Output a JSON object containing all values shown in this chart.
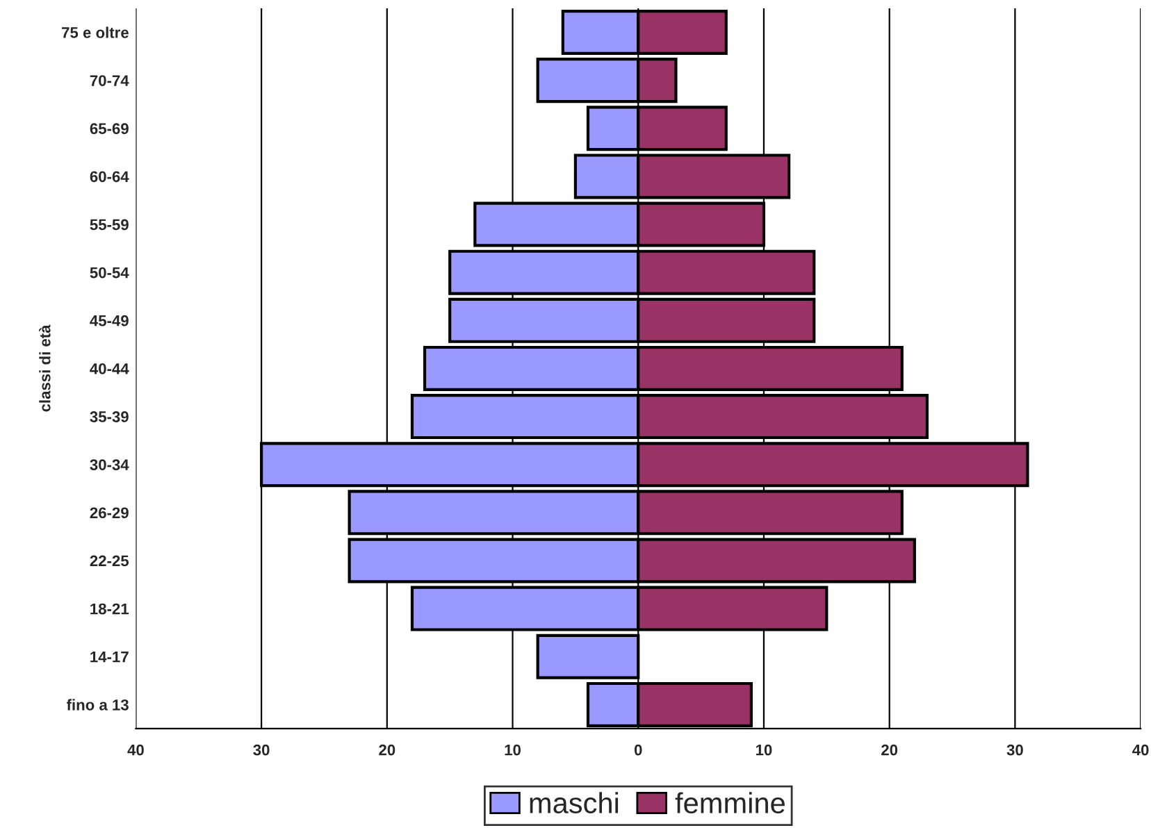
{
  "chart_data": {
    "type": "bar",
    "orientation": "horizontal",
    "ylabel": "classi di età",
    "categories": [
      "75 e oltre",
      "70-74",
      "65-69",
      "60-64",
      "55-59",
      "50-54",
      "45-49",
      "40-44",
      "35-39",
      "30-34",
      "26-29",
      "22-25",
      "18-21",
      "14-17",
      "fino a 13"
    ],
    "series": [
      {
        "name": "maschi",
        "color": "#9999ff",
        "values": [
          -6,
          -8,
          -4,
          -5,
          -13,
          -15,
          -15,
          -17,
          -18,
          -30,
          -23,
          -23,
          -18,
          -8,
          -4
        ]
      },
      {
        "name": "femmine",
        "color": "#993366",
        "values": [
          7,
          3,
          7,
          12,
          10,
          14,
          14,
          21,
          23,
          31,
          21,
          22,
          15,
          null,
          9
        ]
      }
    ],
    "xlim": [
      -40,
      40
    ],
    "xticks": [
      {
        "value": -40,
        "label": "40"
      },
      {
        "value": -30,
        "label": "30"
      },
      {
        "value": -20,
        "label": "20"
      },
      {
        "value": -10,
        "label": "10"
      },
      0,
      10,
      20,
      30,
      40
    ],
    "grid": "x",
    "legend": "bottom",
    "stacked": true
  }
}
